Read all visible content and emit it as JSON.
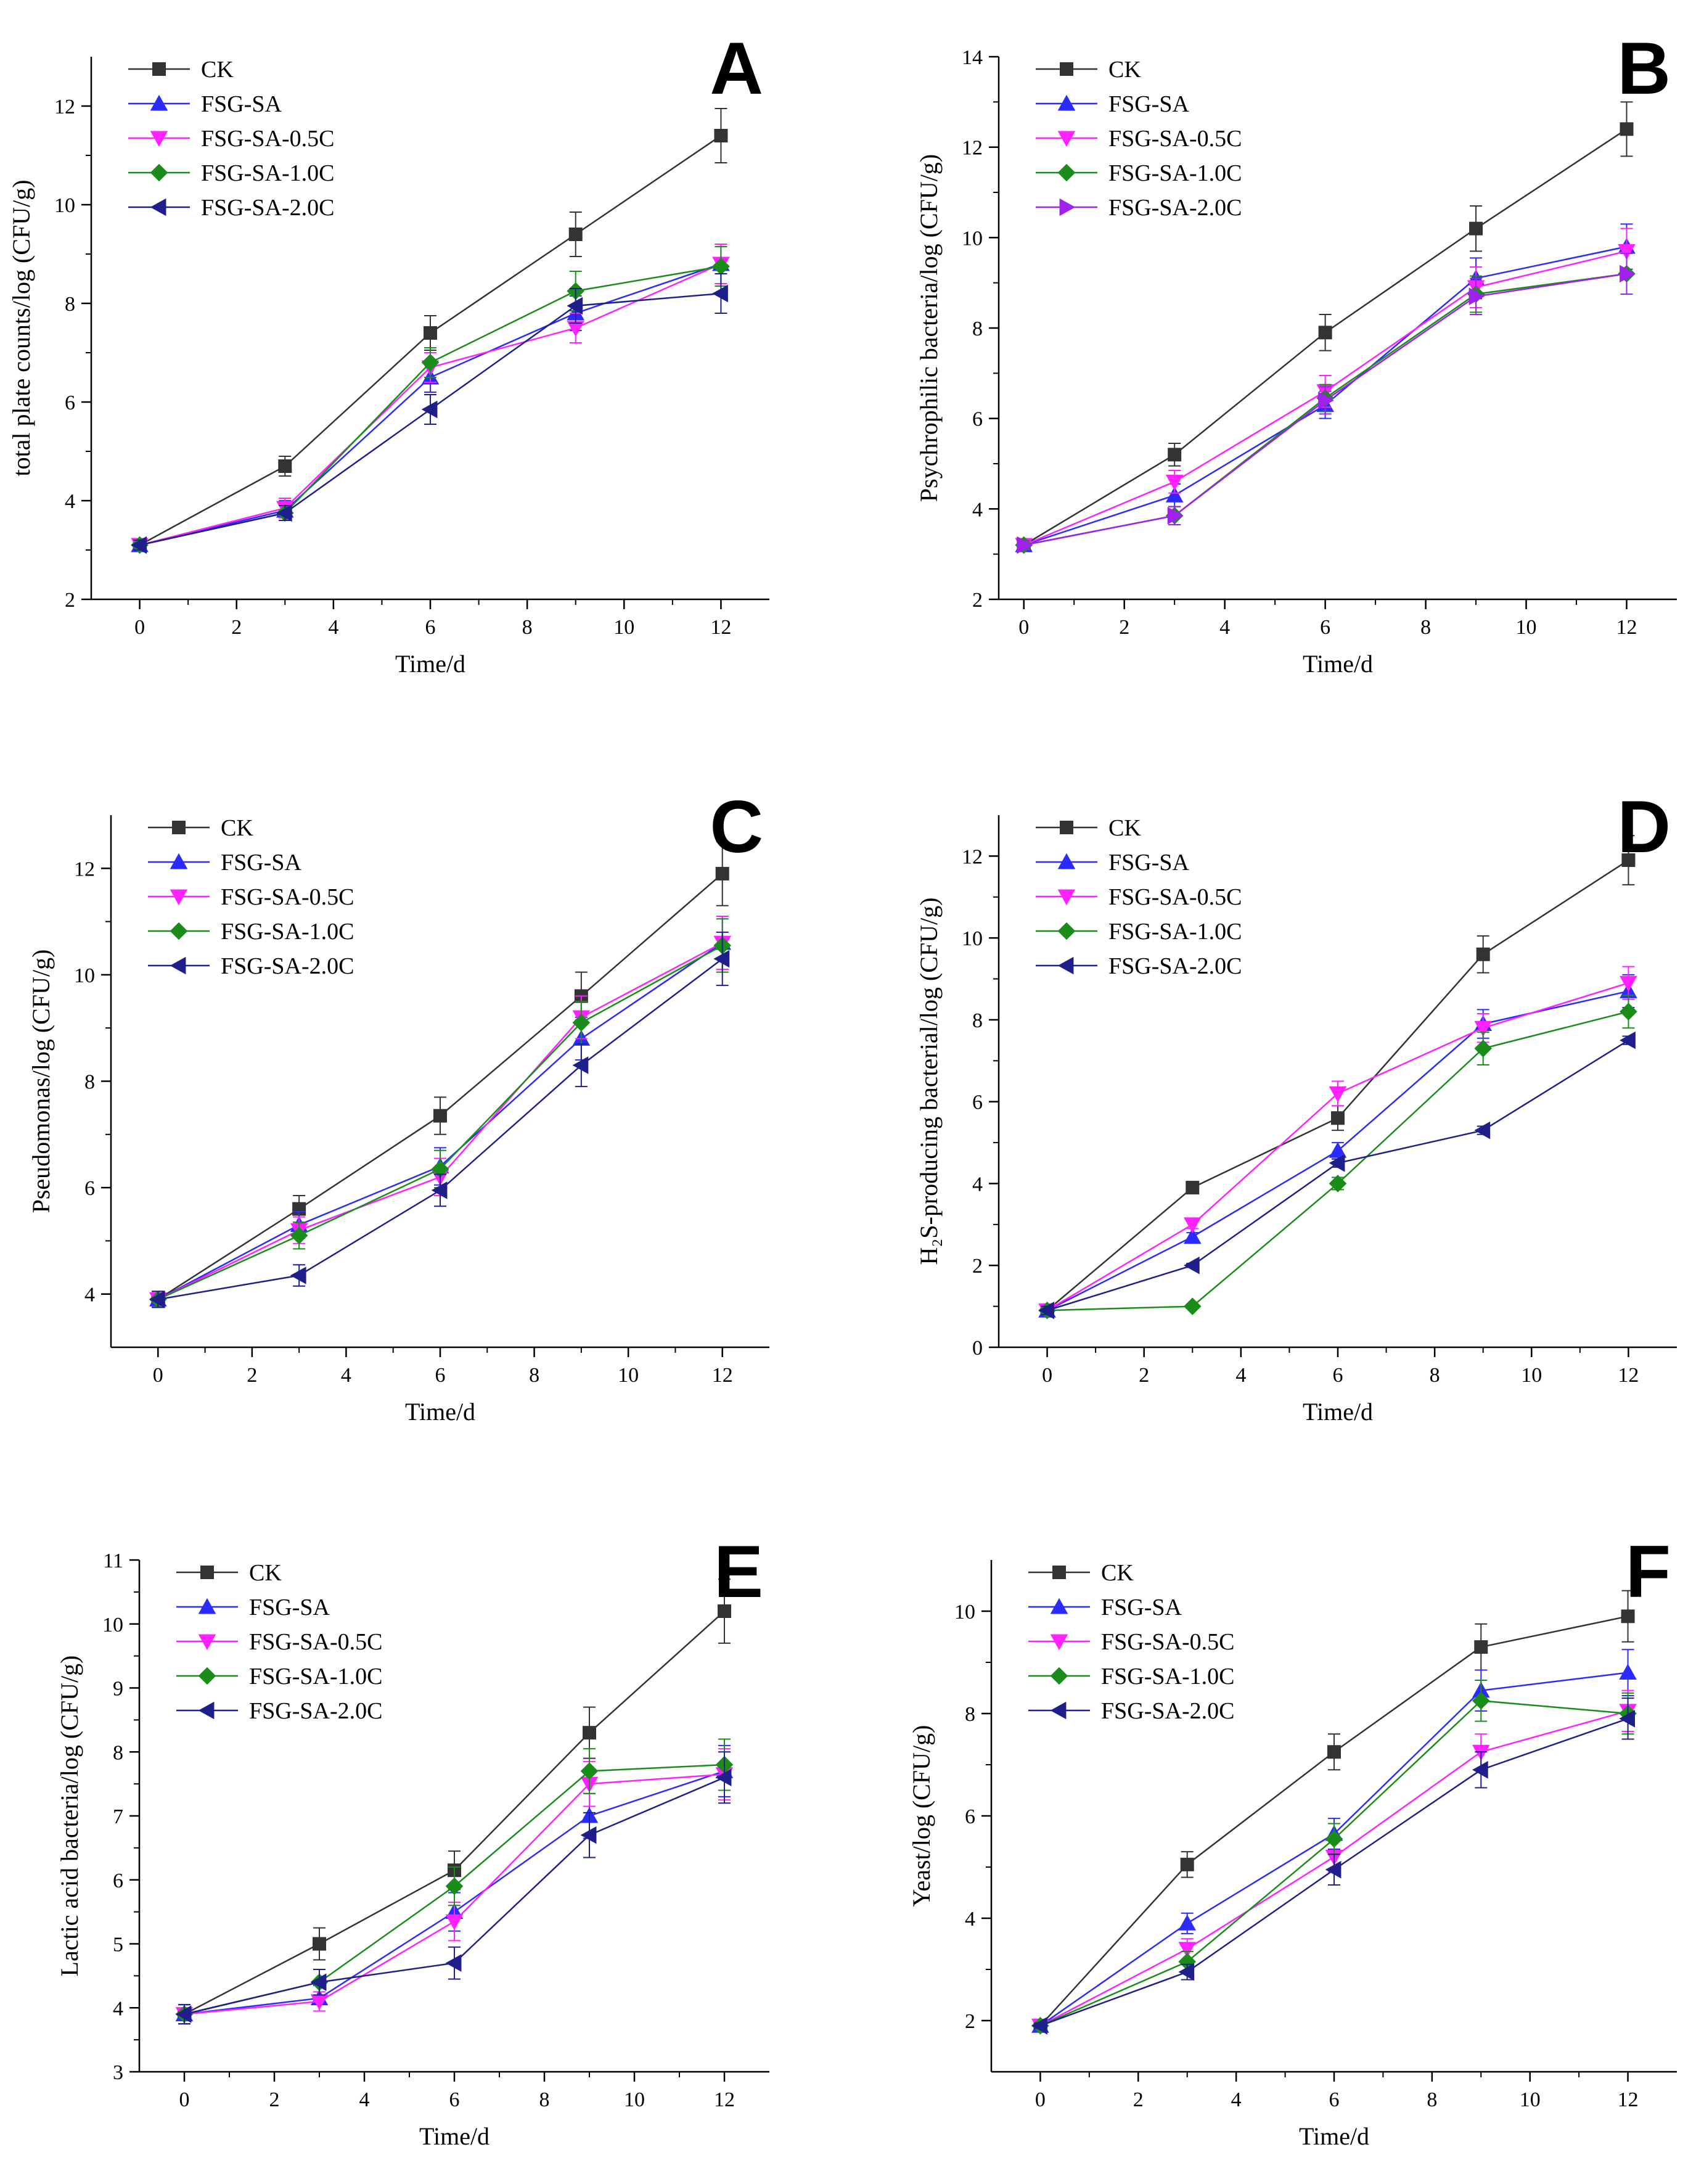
{
  "figure": {
    "description_panels": [
      "A",
      "B",
      "C",
      "D",
      "E",
      "F"
    ]
  },
  "chart_data": [
    {
      "type": "line",
      "panel": "A",
      "title": "",
      "xlabel": "Time/d",
      "ylabel": "total plate counts/log (CFU/g)",
      "x": [
        0,
        3,
        6,
        9,
        12
      ],
      "xlim": [
        -1,
        13
      ],
      "ylim": [
        2,
        13
      ],
      "xticks": [
        0,
        2,
        4,
        6,
        8,
        10,
        12
      ],
      "yticks": [
        2,
        4,
        6,
        8,
        10,
        12
      ],
      "legend": "top-left",
      "series": [
        {
          "name": "CK",
          "color": "#333333",
          "marker": "square",
          "values": [
            3.1,
            4.7,
            7.4,
            9.4,
            11.4
          ],
          "errors": [
            0.1,
            0.2,
            0.35,
            0.45,
            0.55
          ]
        },
        {
          "name": "FSG-SA",
          "color": "#2b2bff",
          "marker": "triangle-up",
          "values": [
            3.1,
            3.8,
            6.5,
            7.8,
            8.8
          ],
          "errors": [
            0.1,
            0.2,
            0.3,
            0.35,
            0.4
          ]
        },
        {
          "name": "FSG-SA-0.5C",
          "color": "#ff22ff",
          "marker": "triangle-down",
          "values": [
            3.1,
            3.85,
            6.7,
            7.5,
            8.8
          ],
          "errors": [
            0.1,
            0.2,
            0.3,
            0.3,
            0.4
          ]
        },
        {
          "name": "FSG-SA-1.0C",
          "color": "#1a8c1a",
          "marker": "diamond",
          "values": [
            3.1,
            3.75,
            6.8,
            8.25,
            8.75
          ],
          "errors": [
            0.1,
            0.15,
            0.3,
            0.4,
            0.4
          ]
        },
        {
          "name": "FSG-SA-2.0C",
          "color": "#1f1f8c",
          "marker": "triangle-left",
          "values": [
            3.1,
            3.75,
            5.85,
            7.95,
            8.2
          ],
          "errors": [
            0.1,
            0.15,
            0.3,
            0.35,
            0.4
          ]
        }
      ]
    },
    {
      "type": "line",
      "panel": "B",
      "title": "",
      "xlabel": "Time/d",
      "ylabel": "Psychrophilic bacteria/log (CFU/g)",
      "x": [
        0,
        3,
        6,
        9,
        12
      ],
      "xlim": [
        -0.5,
        13
      ],
      "ylim": [
        2,
        14
      ],
      "xticks": [
        0,
        2,
        4,
        6,
        8,
        10,
        12
      ],
      "yticks": [
        2,
        4,
        6,
        8,
        10,
        12,
        14
      ],
      "legend": "top-left",
      "series": [
        {
          "name": "CK",
          "color": "#333333",
          "marker": "square",
          "values": [
            3.2,
            5.2,
            7.9,
            10.2,
            12.4
          ],
          "errors": [
            0.1,
            0.25,
            0.4,
            0.5,
            0.6
          ]
        },
        {
          "name": "FSG-SA",
          "color": "#2b2bff",
          "marker": "triangle-up",
          "values": [
            3.2,
            4.3,
            6.3,
            9.1,
            9.8
          ],
          "errors": [
            0.1,
            0.25,
            0.3,
            0.45,
            0.5
          ]
        },
        {
          "name": "FSG-SA-0.5C",
          "color": "#ff22ff",
          "marker": "triangle-down",
          "values": [
            3.2,
            4.6,
            6.6,
            8.9,
            9.7
          ],
          "errors": [
            0.1,
            0.25,
            0.35,
            0.45,
            0.5
          ]
        },
        {
          "name": "FSG-SA-1.0C",
          "color": "#1a8c1a",
          "marker": "diamond",
          "values": [
            3.2,
            3.85,
            6.45,
            8.75,
            9.2
          ],
          "errors": [
            0.1,
            0.2,
            0.3,
            0.4,
            0.45
          ]
        },
        {
          "name": "FSG-SA-2.0C",
          "color": "#a020f0",
          "marker": "triangle-right",
          "values": [
            3.2,
            3.85,
            6.4,
            8.7,
            9.2
          ],
          "errors": [
            0.1,
            0.2,
            0.3,
            0.4,
            0.45
          ]
        }
      ]
    },
    {
      "type": "line",
      "panel": "C",
      "title": "",
      "xlabel": "Time/d",
      "ylabel": "Pseudomonas/log (CFU/g)",
      "x": [
        0,
        3,
        6,
        9,
        12
      ],
      "xlim": [
        -1,
        13
      ],
      "ylim": [
        3,
        13
      ],
      "xticks": [
        0,
        2,
        4,
        6,
        8,
        10,
        12
      ],
      "yticks": [
        4,
        6,
        8,
        10,
        12
      ],
      "legend": "top-left",
      "series": [
        {
          "name": "CK",
          "color": "#333333",
          "marker": "square",
          "values": [
            3.9,
            5.6,
            7.35,
            9.6,
            11.9
          ],
          "errors": [
            0.15,
            0.25,
            0.35,
            0.45,
            0.6
          ]
        },
        {
          "name": "FSG-SA",
          "color": "#2b2bff",
          "marker": "triangle-up",
          "values": [
            3.9,
            5.3,
            6.4,
            8.8,
            10.6
          ],
          "errors": [
            0.15,
            0.25,
            0.35,
            0.4,
            0.5
          ]
        },
        {
          "name": "FSG-SA-0.5C",
          "color": "#ff22ff",
          "marker": "triangle-down",
          "values": [
            3.9,
            5.2,
            6.2,
            9.2,
            10.6
          ],
          "errors": [
            0.15,
            0.25,
            0.35,
            0.4,
            0.5
          ]
        },
        {
          "name": "FSG-SA-1.0C",
          "color": "#1a8c1a",
          "marker": "diamond",
          "values": [
            3.9,
            5.1,
            6.35,
            9.1,
            10.55
          ],
          "errors": [
            0.15,
            0.25,
            0.35,
            0.4,
            0.5
          ]
        },
        {
          "name": "FSG-SA-2.0C",
          "color": "#1f1f8c",
          "marker": "triangle-left",
          "values": [
            3.9,
            4.35,
            5.95,
            8.3,
            10.3
          ],
          "errors": [
            0.15,
            0.2,
            0.3,
            0.4,
            0.5
          ]
        }
      ]
    },
    {
      "type": "line",
      "panel": "D",
      "title": "",
      "xlabel": "Time/d",
      "ylabel": "H₂S-producing bacterial/log (CFU/g)",
      "x": [
        0,
        3,
        6,
        9,
        12
      ],
      "xlim": [
        -1,
        13
      ],
      "ylim": [
        0,
        13
      ],
      "xticks": [
        0,
        2,
        4,
        6,
        8,
        10,
        12
      ],
      "yticks": [
        0,
        2,
        4,
        6,
        8,
        10,
        12
      ],
      "legend": "top-left",
      "series": [
        {
          "name": "CK",
          "color": "#333333",
          "marker": "square",
          "values": [
            0.9,
            3.9,
            5.6,
            9.6,
            11.9
          ],
          "errors": [
            0.1,
            0.15,
            0.3,
            0.45,
            0.6
          ]
        },
        {
          "name": "FSG-SA",
          "color": "#2b2bff",
          "marker": "triangle-up",
          "values": [
            0.9,
            2.7,
            4.8,
            7.9,
            8.7
          ],
          "errors": [
            0.1,
            0.1,
            0.2,
            0.35,
            0.4
          ]
        },
        {
          "name": "FSG-SA-0.5C",
          "color": "#ff22ff",
          "marker": "triangle-down",
          "values": [
            0.9,
            3.0,
            6.2,
            7.8,
            8.9
          ],
          "errors": [
            0.1,
            0.1,
            0.3,
            0.35,
            0.4
          ]
        },
        {
          "name": "FSG-SA-1.0C",
          "color": "#1a8c1a",
          "marker": "diamond",
          "values": [
            0.9,
            1.0,
            4.0,
            7.3,
            8.2
          ],
          "errors": [
            0.1,
            0.05,
            0.15,
            0.4,
            0.4
          ]
        },
        {
          "name": "FSG-SA-2.0C",
          "color": "#1f1f8c",
          "marker": "triangle-left",
          "values": [
            0.9,
            2.0,
            4.5,
            5.3,
            7.5
          ],
          "errors": [
            0.1,
            0.05,
            0.1,
            0.1,
            0.1
          ]
        }
      ]
    },
    {
      "type": "line",
      "panel": "E",
      "title": "",
      "xlabel": "Time/d",
      "ylabel": "Lactic acid bacteria/log (CFU/g)",
      "x": [
        0,
        3,
        6,
        9,
        12
      ],
      "xlim": [
        -1,
        13
      ],
      "ylim": [
        3,
        11
      ],
      "xticks": [
        0,
        2,
        4,
        6,
        8,
        10,
        12
      ],
      "yticks": [
        3,
        4,
        5,
        6,
        7,
        8,
        9,
        10,
        11
      ],
      "legend": "top-left",
      "series": [
        {
          "name": "CK",
          "color": "#333333",
          "marker": "square",
          "values": [
            3.9,
            5.0,
            6.15,
            8.3,
            10.2
          ],
          "errors": [
            0.15,
            0.25,
            0.3,
            0.4,
            0.5
          ]
        },
        {
          "name": "FSG-SA",
          "color": "#2b2bff",
          "marker": "triangle-up",
          "values": [
            3.9,
            4.15,
            5.5,
            7.0,
            7.7
          ],
          "errors": [
            0.15,
            0.2,
            0.3,
            0.35,
            0.4
          ]
        },
        {
          "name": "FSG-SA-0.5C",
          "color": "#ff22ff",
          "marker": "triangle-down",
          "values": [
            3.9,
            4.1,
            5.35,
            7.5,
            7.65
          ],
          "errors": [
            0.15,
            0.15,
            0.3,
            0.35,
            0.4
          ]
        },
        {
          "name": "FSG-SA-1.0C",
          "color": "#1a8c1a",
          "marker": "diamond",
          "values": [
            3.9,
            4.4,
            5.9,
            7.7,
            7.8
          ],
          "errors": [
            0.15,
            0.2,
            0.3,
            0.35,
            0.4
          ]
        },
        {
          "name": "FSG-SA-2.0C",
          "color": "#1f1f8c",
          "marker": "triangle-left",
          "values": [
            3.9,
            4.4,
            4.7,
            6.7,
            7.6
          ],
          "errors": [
            0.15,
            0.2,
            0.25,
            0.35,
            0.4
          ]
        }
      ]
    },
    {
      "type": "line",
      "panel": "F",
      "title": "",
      "xlabel": "Time/d",
      "ylabel": "Yeast/log (CFU/g)",
      "x": [
        0,
        3,
        6,
        9,
        12
      ],
      "xlim": [
        -1,
        13
      ],
      "ylim": [
        1,
        11
      ],
      "xticks": [
        0,
        2,
        4,
        6,
        8,
        10,
        12
      ],
      "yticks": [
        2,
        4,
        6,
        8,
        10
      ],
      "legend": "top-left",
      "series": [
        {
          "name": "CK",
          "color": "#333333",
          "marker": "square",
          "values": [
            1.9,
            5.05,
            7.25,
            9.3,
            9.9
          ],
          "errors": [
            0.05,
            0.25,
            0.35,
            0.45,
            0.5
          ]
        },
        {
          "name": "FSG-SA",
          "color": "#2b2bff",
          "marker": "triangle-up",
          "values": [
            1.9,
            3.9,
            5.65,
            8.45,
            8.8
          ],
          "errors": [
            0.05,
            0.2,
            0.3,
            0.4,
            0.45
          ]
        },
        {
          "name": "FSG-SA-0.5C",
          "color": "#ff22ff",
          "marker": "triangle-down",
          "values": [
            1.9,
            3.4,
            5.2,
            7.25,
            8.05
          ],
          "errors": [
            0.05,
            0.2,
            0.3,
            0.35,
            0.4
          ]
        },
        {
          "name": "FSG-SA-1.0C",
          "color": "#1a8c1a",
          "marker": "diamond",
          "values": [
            1.9,
            3.15,
            5.55,
            8.25,
            8.0
          ],
          "errors": [
            0.05,
            0.2,
            0.3,
            0.4,
            0.4
          ]
        },
        {
          "name": "FSG-SA-2.0C",
          "color": "#1f1f8c",
          "marker": "triangle-left",
          "values": [
            1.9,
            2.95,
            4.95,
            6.9,
            7.9
          ],
          "errors": [
            0.05,
            0.15,
            0.3,
            0.35,
            0.4
          ]
        }
      ]
    }
  ]
}
